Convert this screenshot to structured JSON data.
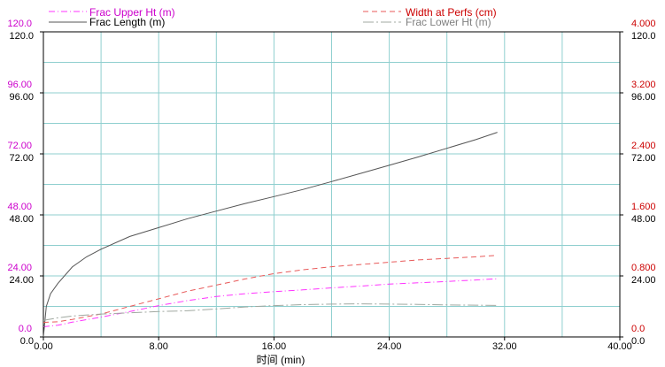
{
  "chart_data": {
    "type": "line",
    "xlabel": "时间 (min)",
    "x_ticks": [
      "0.00",
      "8.00",
      "16.00",
      "24.00",
      "32.00",
      "40.00"
    ],
    "xlim": [
      0,
      40
    ],
    "left_axis_magenta_ticks": [
      "0.0",
      "24.00",
      "48.00",
      "72.00",
      "96.00",
      "120.0"
    ],
    "left_axis_black_ticks": [
      "0.0",
      "24.00",
      "48.00",
      "72.00",
      "96.00",
      "120.0"
    ],
    "right_axis_red_ticks": [
      "0.0",
      "0.800",
      "1.600",
      "2.400",
      "3.200",
      "4.000"
    ],
    "right_axis_black_ticks": [
      "0.0",
      "24.00",
      "48.00",
      "72.00",
      "96.00",
      "120.0"
    ],
    "y_left_lim": [
      0,
      120
    ],
    "y_right_lim": [
      0,
      4
    ],
    "grid": true,
    "legend_placement": "top",
    "colors": {
      "frac_upper": "#ff33ff",
      "frac_length": "#555555",
      "width": "#e85a5a",
      "frac_lower": "#a0a8a0",
      "grid": "#8fcfcf",
      "magenta_text": "#cc00cc",
      "red_text": "#cc0000"
    },
    "series": [
      {
        "name": "Frac Upper Ht (m)",
        "axis": "left",
        "style": "dash-dot",
        "x": [
          0,
          1,
          2,
          4,
          6,
          8,
          10,
          12,
          14,
          16,
          18,
          20,
          22,
          24,
          26,
          28,
          30,
          31.5
        ],
        "y": [
          4,
          4.6,
          5.8,
          7.8,
          10,
          12.3,
          14.3,
          15.9,
          17,
          17.8,
          18.5,
          19.3,
          20,
          20.8,
          21.3,
          21.8,
          22.4,
          22.9
        ]
      },
      {
        "name": "Frac Length (m)",
        "axis": "left",
        "style": "solid",
        "x": [
          0,
          0.2,
          0.5,
          1,
          2,
          3,
          4,
          6,
          8,
          10,
          12,
          14,
          16,
          18,
          20,
          22,
          24,
          26,
          28,
          30,
          31.5
        ],
        "y": [
          0,
          12,
          17,
          21,
          27.5,
          31.5,
          34.5,
          39.5,
          43,
          46.5,
          49.5,
          52.5,
          55.2,
          58,
          61.1,
          64.3,
          67.5,
          70.8,
          74.2,
          77.6,
          80.5
        ]
      },
      {
        "name": "Width at Perfs (cm)",
        "axis": "right",
        "style": "dash",
        "x": [
          0,
          1,
          2,
          4,
          6,
          8,
          10,
          12,
          14,
          16,
          18,
          20,
          22,
          24,
          26,
          28,
          30,
          31.5
        ],
        "y": [
          0.19,
          0.2,
          0.23,
          0.3,
          0.4,
          0.5,
          0.6,
          0.68,
          0.76,
          0.83,
          0.88,
          0.92,
          0.95,
          0.98,
          1.01,
          1.03,
          1.05,
          1.07
        ]
      },
      {
        "name": "Frac Lower Ht (m)",
        "axis": "left",
        "style": "long-dash-dot",
        "x": [
          0,
          1,
          2,
          4,
          6,
          8,
          10,
          12,
          14,
          16,
          18,
          20,
          22,
          24,
          26,
          28,
          30,
          31.5
        ],
        "y": [
          6.5,
          7.5,
          8.2,
          9,
          9.5,
          10,
          10.3,
          11,
          11.8,
          12.3,
          12.7,
          12.9,
          13,
          12.9,
          12.8,
          12.6,
          12.5,
          12.4
        ]
      }
    ]
  }
}
